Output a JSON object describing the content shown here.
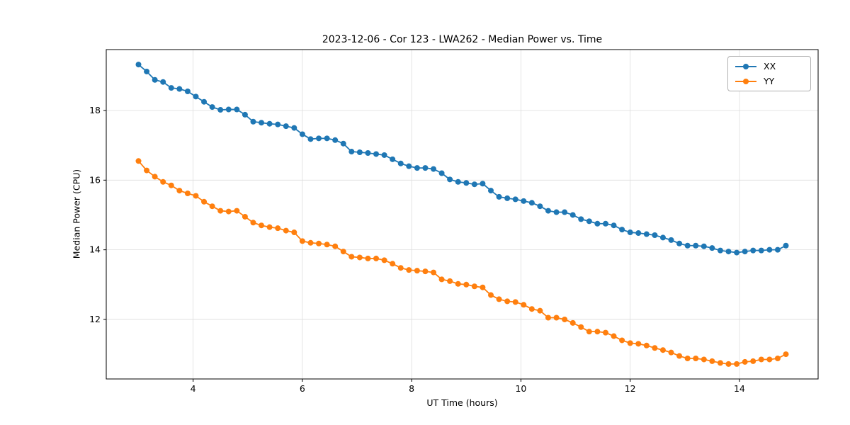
{
  "chart_data": {
    "type": "line",
    "title": "2023-12-06 - Cor 123 - LWA262 - Median Power vs. Time",
    "xlabel": "UT Time (hours)",
    "ylabel": "Median Power (CPU)",
    "xlim": [
      2.41,
      15.44
    ],
    "ylim": [
      10.29,
      19.75
    ],
    "xticks": [
      4,
      6,
      8,
      10,
      12,
      14
    ],
    "yticks": [
      12,
      14,
      16,
      18
    ],
    "grid": true,
    "legend_position": "upper right",
    "x": [
      3.0,
      3.15,
      3.3,
      3.45,
      3.6,
      3.75,
      3.9,
      4.05,
      4.2,
      4.35,
      4.5,
      4.65,
      4.8,
      4.95,
      5.1,
      5.25,
      5.4,
      5.55,
      5.7,
      5.85,
      6.0,
      6.15,
      6.3,
      6.45,
      6.6,
      6.75,
      6.9,
      7.05,
      7.2,
      7.35,
      7.5,
      7.65,
      7.8,
      7.95,
      8.1,
      8.25,
      8.4,
      8.55,
      8.7,
      8.85,
      9.0,
      9.15,
      9.3,
      9.45,
      9.6,
      9.75,
      9.9,
      10.05,
      10.2,
      10.35,
      10.5,
      10.65,
      10.8,
      10.95,
      11.1,
      11.25,
      11.4,
      11.55,
      11.7,
      11.85,
      12.0,
      12.15,
      12.3,
      12.45,
      12.6,
      12.75,
      12.9,
      13.05,
      13.2,
      13.35,
      13.5,
      13.65,
      13.8,
      13.95,
      14.1,
      14.25,
      14.4,
      14.55,
      14.7,
      14.85
    ],
    "series": [
      {
        "name": "XX",
        "color": "#1f77b4",
        "values": [
          19.32,
          19.12,
          18.88,
          18.82,
          18.65,
          18.62,
          18.55,
          18.4,
          18.25,
          18.1,
          18.02,
          18.03,
          18.03,
          17.88,
          17.68,
          17.65,
          17.62,
          17.6,
          17.55,
          17.5,
          17.32,
          17.18,
          17.2,
          17.2,
          17.15,
          17.05,
          16.82,
          16.8,
          16.78,
          16.75,
          16.72,
          16.6,
          16.48,
          16.4,
          16.35,
          16.35,
          16.32,
          16.2,
          16.02,
          15.95,
          15.92,
          15.88,
          15.9,
          15.7,
          15.52,
          15.48,
          15.45,
          15.4,
          15.35,
          15.25,
          15.12,
          15.08,
          15.08,
          15.0,
          14.88,
          14.82,
          14.75,
          14.75,
          14.7,
          14.58,
          14.5,
          14.48,
          14.45,
          14.42,
          14.35,
          14.28,
          14.18,
          14.12,
          14.12,
          14.1,
          14.05,
          13.98,
          13.95,
          13.92,
          13.95,
          13.98,
          13.98,
          14.0,
          14.0,
          14.12
        ]
      },
      {
        "name": "YY",
        "color": "#ff7f0e",
        "values": [
          16.55,
          16.28,
          16.1,
          15.95,
          15.85,
          15.7,
          15.62,
          15.55,
          15.38,
          15.25,
          15.12,
          15.1,
          15.12,
          14.95,
          14.78,
          14.7,
          14.65,
          14.62,
          14.55,
          14.5,
          14.25,
          14.2,
          14.18,
          14.15,
          14.1,
          13.95,
          13.8,
          13.78,
          13.75,
          13.75,
          13.7,
          13.6,
          13.48,
          13.42,
          13.4,
          13.38,
          13.35,
          13.15,
          13.1,
          13.02,
          13.0,
          12.95,
          12.92,
          12.7,
          12.58,
          12.52,
          12.5,
          12.42,
          12.3,
          12.25,
          12.05,
          12.05,
          12.0,
          11.9,
          11.78,
          11.65,
          11.65,
          11.62,
          11.52,
          11.4,
          11.32,
          11.3,
          11.25,
          11.18,
          11.12,
          11.05,
          10.95,
          10.88,
          10.88,
          10.85,
          10.8,
          10.75,
          10.72,
          10.72,
          10.78,
          10.8,
          10.85,
          10.85,
          10.88,
          11.0
        ]
      }
    ]
  }
}
